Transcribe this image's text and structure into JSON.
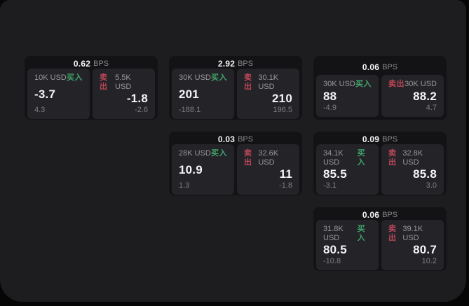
{
  "page": {
    "background": "#060607",
    "panel_background": "#1d1d1f"
  },
  "colors": {
    "buy_green": "#41a46b",
    "sell_red": "#bd4657",
    "card_background": "#131315",
    "subcard_background": "#242428",
    "value_white": "#f4f4f5",
    "label_gray": "#98989c"
  },
  "cards": [
    {
      "row": 1,
      "col": 1,
      "header": {
        "value": "0.62",
        "unit": "BPS"
      },
      "buy": {
        "size": "10K USD",
        "side": "买入",
        "price": "-3.7",
        "change": "4.3"
      },
      "sell": {
        "side": "卖出",
        "size": "5.5K USD",
        "price": "-1.8",
        "change": "-2.6"
      }
    },
    {
      "row": 1,
      "col": 2,
      "header": {
        "value": "2.92",
        "unit": "BPS"
      },
      "buy": {
        "size": "30K USD",
        "side": "买入",
        "price": "201",
        "change": "-188.1"
      },
      "sell": {
        "side": "卖出",
        "size": "30.1K USD",
        "price": "210",
        "change": "196.5"
      }
    },
    {
      "row": 1,
      "col": 3,
      "header": {
        "value": "0.06",
        "unit": "BPS"
      },
      "buy": {
        "size": "30K USD",
        "side": "买入",
        "price": "88",
        "change": "-4.9"
      },
      "sell": {
        "side": "卖出",
        "size": "30K USD",
        "price": "88.2",
        "change": "4.7"
      }
    },
    {
      "row": 2,
      "col": 2,
      "header": {
        "value": "0.03",
        "unit": "BPS"
      },
      "buy": {
        "size": "28K USD",
        "side": "买入",
        "price": "10.9",
        "change": "1.3"
      },
      "sell": {
        "side": "卖出",
        "size": "32.6K USD",
        "price": "11",
        "change": "-1.8"
      }
    },
    {
      "row": 2,
      "col": 3,
      "header": {
        "value": "0.09",
        "unit": "BPS"
      },
      "buy": {
        "size": "34.1K USD",
        "side": "买入",
        "price": "85.5",
        "change": "-3.1"
      },
      "sell": {
        "side": "卖出",
        "size": "32.8K USD",
        "price": "85.8",
        "change": "3.0"
      }
    },
    {
      "row": 3,
      "col": 3,
      "header": {
        "value": "0.06",
        "unit": "BPS"
      },
      "buy": {
        "size": "31.8K USD",
        "side": "买入",
        "price": "80.5",
        "change": "-10.8"
      },
      "sell": {
        "side": "卖出",
        "size": "39.1K USD",
        "price": "80.7",
        "change": "10.2"
      }
    }
  ]
}
